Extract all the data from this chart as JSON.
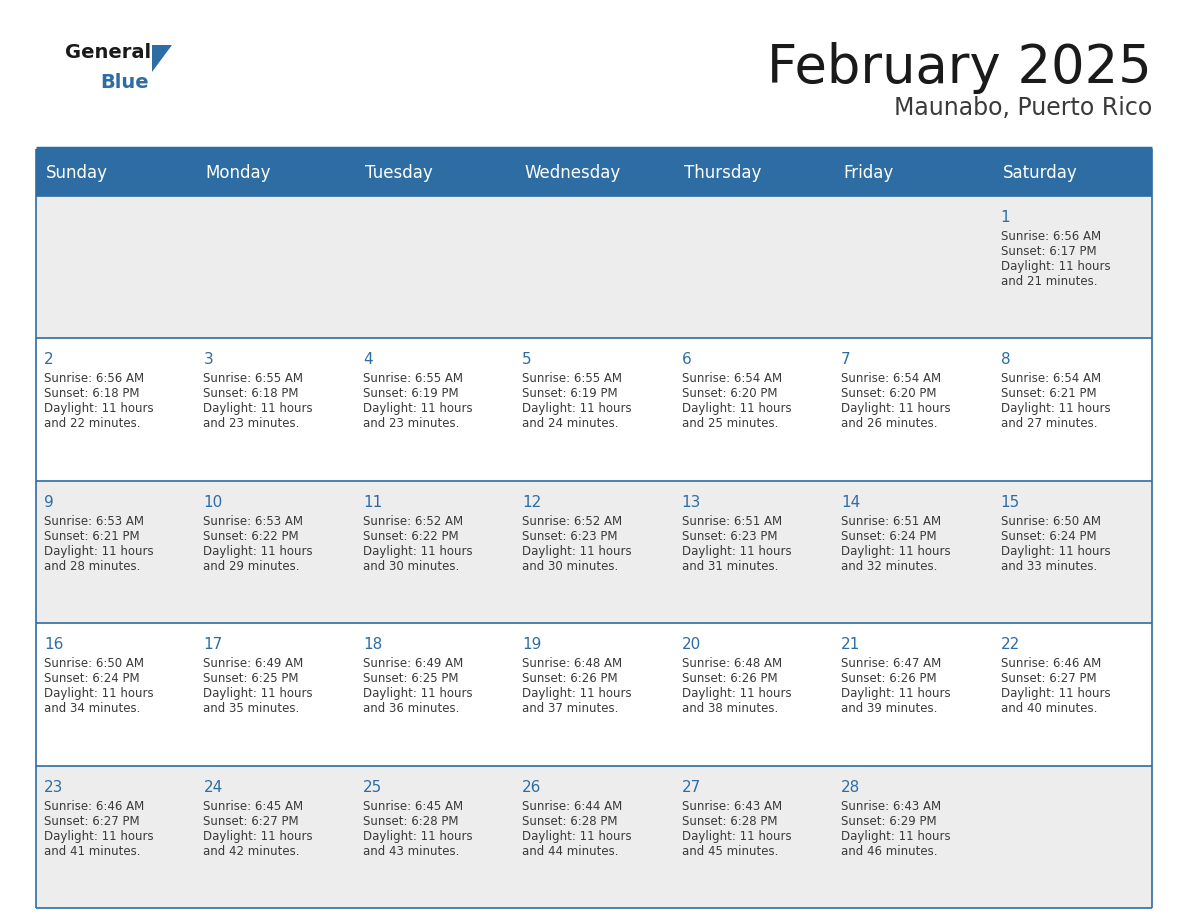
{
  "title": "February 2025",
  "subtitle": "Maunabo, Puerto Rico",
  "days_of_week": [
    "Sunday",
    "Monday",
    "Tuesday",
    "Wednesday",
    "Thursday",
    "Friday",
    "Saturday"
  ],
  "header_bg": "#2E6DA4",
  "header_text_color": "#FFFFFF",
  "cell_bg_light": "#EDEDED",
  "cell_bg_white": "#FFFFFF",
  "day_number_color": "#2E6DA4",
  "info_text_color": "#3a3a3a",
  "border_color": "#2E6DA4",
  "background_color": "#FFFFFF",
  "title_color": "#1a1a1a",
  "subtitle_color": "#3a3a3a",
  "logo_general_color": "#1a1a1a",
  "logo_blue_color": "#2E6DA4",
  "calendar_data": [
    [
      null,
      null,
      null,
      null,
      null,
      null,
      {
        "day": 1,
        "sunrise": "6:56 AM",
        "sunset": "6:17 PM",
        "daylight_h": "11 hours",
        "daylight_m": "and 21 minutes."
      }
    ],
    [
      {
        "day": 2,
        "sunrise": "6:56 AM",
        "sunset": "6:18 PM",
        "daylight_h": "11 hours",
        "daylight_m": "and 22 minutes."
      },
      {
        "day": 3,
        "sunrise": "6:55 AM",
        "sunset": "6:18 PM",
        "daylight_h": "11 hours",
        "daylight_m": "and 23 minutes."
      },
      {
        "day": 4,
        "sunrise": "6:55 AM",
        "sunset": "6:19 PM",
        "daylight_h": "11 hours",
        "daylight_m": "and 23 minutes."
      },
      {
        "day": 5,
        "sunrise": "6:55 AM",
        "sunset": "6:19 PM",
        "daylight_h": "11 hours",
        "daylight_m": "and 24 minutes."
      },
      {
        "day": 6,
        "sunrise": "6:54 AM",
        "sunset": "6:20 PM",
        "daylight_h": "11 hours",
        "daylight_m": "and 25 minutes."
      },
      {
        "day": 7,
        "sunrise": "6:54 AM",
        "sunset": "6:20 PM",
        "daylight_h": "11 hours",
        "daylight_m": "and 26 minutes."
      },
      {
        "day": 8,
        "sunrise": "6:54 AM",
        "sunset": "6:21 PM",
        "daylight_h": "11 hours",
        "daylight_m": "and 27 minutes."
      }
    ],
    [
      {
        "day": 9,
        "sunrise": "6:53 AM",
        "sunset": "6:21 PM",
        "daylight_h": "11 hours",
        "daylight_m": "and 28 minutes."
      },
      {
        "day": 10,
        "sunrise": "6:53 AM",
        "sunset": "6:22 PM",
        "daylight_h": "11 hours",
        "daylight_m": "and 29 minutes."
      },
      {
        "day": 11,
        "sunrise": "6:52 AM",
        "sunset": "6:22 PM",
        "daylight_h": "11 hours",
        "daylight_m": "and 30 minutes."
      },
      {
        "day": 12,
        "sunrise": "6:52 AM",
        "sunset": "6:23 PM",
        "daylight_h": "11 hours",
        "daylight_m": "and 30 minutes."
      },
      {
        "day": 13,
        "sunrise": "6:51 AM",
        "sunset": "6:23 PM",
        "daylight_h": "11 hours",
        "daylight_m": "and 31 minutes."
      },
      {
        "day": 14,
        "sunrise": "6:51 AM",
        "sunset": "6:24 PM",
        "daylight_h": "11 hours",
        "daylight_m": "and 32 minutes."
      },
      {
        "day": 15,
        "sunrise": "6:50 AM",
        "sunset": "6:24 PM",
        "daylight_h": "11 hours",
        "daylight_m": "and 33 minutes."
      }
    ],
    [
      {
        "day": 16,
        "sunrise": "6:50 AM",
        "sunset": "6:24 PM",
        "daylight_h": "11 hours",
        "daylight_m": "and 34 minutes."
      },
      {
        "day": 17,
        "sunrise": "6:49 AM",
        "sunset": "6:25 PM",
        "daylight_h": "11 hours",
        "daylight_m": "and 35 minutes."
      },
      {
        "day": 18,
        "sunrise": "6:49 AM",
        "sunset": "6:25 PM",
        "daylight_h": "11 hours",
        "daylight_m": "and 36 minutes."
      },
      {
        "day": 19,
        "sunrise": "6:48 AM",
        "sunset": "6:26 PM",
        "daylight_h": "11 hours",
        "daylight_m": "and 37 minutes."
      },
      {
        "day": 20,
        "sunrise": "6:48 AM",
        "sunset": "6:26 PM",
        "daylight_h": "11 hours",
        "daylight_m": "and 38 minutes."
      },
      {
        "day": 21,
        "sunrise": "6:47 AM",
        "sunset": "6:26 PM",
        "daylight_h": "11 hours",
        "daylight_m": "and 39 minutes."
      },
      {
        "day": 22,
        "sunrise": "6:46 AM",
        "sunset": "6:27 PM",
        "daylight_h": "11 hours",
        "daylight_m": "and 40 minutes."
      }
    ],
    [
      {
        "day": 23,
        "sunrise": "6:46 AM",
        "sunset": "6:27 PM",
        "daylight_h": "11 hours",
        "daylight_m": "and 41 minutes."
      },
      {
        "day": 24,
        "sunrise": "6:45 AM",
        "sunset": "6:27 PM",
        "daylight_h": "11 hours",
        "daylight_m": "and 42 minutes."
      },
      {
        "day": 25,
        "sunrise": "6:45 AM",
        "sunset": "6:28 PM",
        "daylight_h": "11 hours",
        "daylight_m": "and 43 minutes."
      },
      {
        "day": 26,
        "sunrise": "6:44 AM",
        "sunset": "6:28 PM",
        "daylight_h": "11 hours",
        "daylight_m": "and 44 minutes."
      },
      {
        "day": 27,
        "sunrise": "6:43 AM",
        "sunset": "6:28 PM",
        "daylight_h": "11 hours",
        "daylight_m": "and 45 minutes."
      },
      {
        "day": 28,
        "sunrise": "6:43 AM",
        "sunset": "6:29 PM",
        "daylight_h": "11 hours",
        "daylight_m": "and 46 minutes."
      },
      null
    ]
  ]
}
